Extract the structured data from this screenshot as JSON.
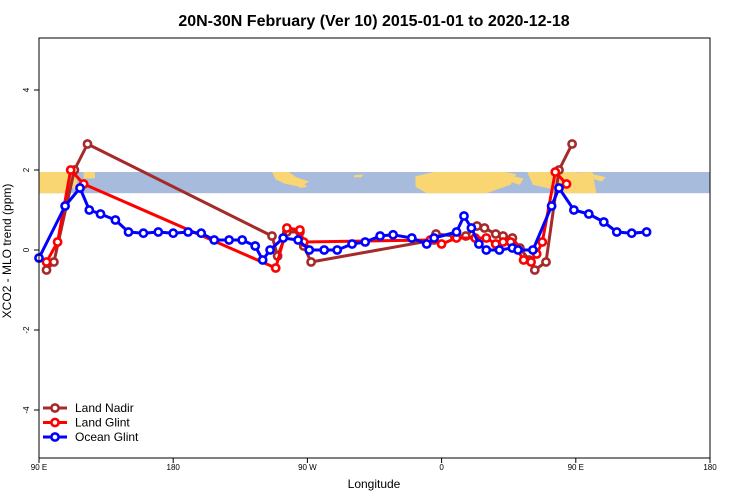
{
  "chart_data": {
    "type": "line",
    "title": "20N-30N February (Ver 10)   2015-01-01 to 2020-12-18",
    "xlabel": "Longitude",
    "ylabel": "XCO2 - MLO trend (ppm)",
    "xlim": [
      -90,
      270
    ],
    "ylim": [
      -5.2,
      5.3
    ],
    "x_ticks": [
      {
        "value": -90,
        "label": "90 E"
      },
      {
        "value": -18,
        "label": "180"
      },
      {
        "value": 54,
        "label": "90 W"
      },
      {
        "value": 126,
        "label": "0"
      },
      {
        "value": 198,
        "label": "90 E"
      },
      {
        "value": 270,
        "label": "180"
      }
    ],
    "y_ticks": [
      {
        "value": -4,
        "label": "-4"
      },
      {
        "value": -2,
        "label": "-2"
      },
      {
        "value": 0,
        "label": "0"
      },
      {
        "value": 2,
        "label": "2"
      },
      {
        "value": 4,
        "label": "4"
      }
    ],
    "map_band": {
      "y_min": 1.42,
      "y_max": 1.95,
      "ocean_color": "#a7bcdc",
      "land_color": "#fad673"
    },
    "legend_position": "bottom-left",
    "series": [
      {
        "name": "Land Nadir",
        "color": "#a52a2a",
        "points": [
          [
            -86,
            -0.5
          ],
          [
            -82,
            -0.3
          ],
          [
            -71,
            2.0
          ],
          [
            -64,
            2.65
          ],
          [
            35,
            0.35
          ],
          [
            38,
            -0.15
          ],
          [
            43,
            0.45
          ],
          [
            50,
            0.45
          ],
          [
            52,
            0.1
          ],
          [
            56,
            -0.3
          ],
          [
            122,
            0.25
          ],
          [
            123,
            0.4
          ],
          [
            133,
            0.35
          ],
          [
            139,
            0.35
          ],
          [
            145,
            0.6
          ],
          [
            149,
            0.55
          ],
          [
            155,
            0.4
          ],
          [
            159,
            0.35
          ],
          [
            164,
            0.3
          ],
          [
            168,
            0.05
          ],
          [
            173,
            -0.25
          ],
          [
            176,
            -0.5
          ],
          [
            182,
            -0.3
          ],
          [
            189,
            2.0
          ],
          [
            196,
            2.65
          ]
        ]
      },
      {
        "name": "Land Glint",
        "color": "#ff0000",
        "points": [
          [
            -86,
            -0.3
          ],
          [
            -80,
            0.2
          ],
          [
            -73,
            2.0
          ],
          [
            -66,
            1.65
          ],
          [
            37,
            -0.45
          ],
          [
            43,
            0.55
          ],
          [
            50,
            0.5
          ],
          [
            52,
            0.2
          ],
          [
            120,
            0.25
          ],
          [
            126,
            0.15
          ],
          [
            134,
            0.3
          ],
          [
            144,
            0.3
          ],
          [
            150,
            0.3
          ],
          [
            155,
            0.15
          ],
          [
            159,
            0.2
          ],
          [
            163,
            0.2
          ],
          [
            166,
            0.05
          ],
          [
            170,
            -0.25
          ],
          [
            174,
            -0.3
          ],
          [
            177,
            -0.1
          ],
          [
            180,
            0.2
          ],
          [
            187,
            1.95
          ],
          [
            193,
            1.65
          ]
        ]
      },
      {
        "name": "Ocean Glint",
        "color": "#0000ff",
        "points": [
          [
            -90,
            -0.2
          ],
          [
            -76,
            1.1
          ],
          [
            -68,
            1.55
          ],
          [
            -63,
            1.0
          ],
          [
            -57,
            0.9
          ],
          [
            -49,
            0.75
          ],
          [
            -42,
            0.45
          ],
          [
            -34,
            0.42
          ],
          [
            -26,
            0.45
          ],
          [
            -18,
            0.42
          ],
          [
            -10,
            0.45
          ],
          [
            -3,
            0.42
          ],
          [
            4,
            0.25
          ],
          [
            12,
            0.25
          ],
          [
            19,
            0.25
          ],
          [
            26,
            0.1
          ],
          [
            30,
            -0.25
          ],
          [
            34,
            0.0
          ],
          [
            41,
            0.3
          ],
          [
            49,
            0.25
          ],
          [
            55,
            0.0
          ],
          [
            63,
            0.0
          ],
          [
            70,
            0.0
          ],
          [
            78,
            0.15
          ],
          [
            85,
            0.2
          ],
          [
            93,
            0.35
          ],
          [
            100,
            0.38
          ],
          [
            110,
            0.3
          ],
          [
            118,
            0.15
          ],
          [
            122,
            0.3
          ],
          [
            134,
            0.45
          ],
          [
            138,
            0.85
          ],
          [
            142,
            0.55
          ],
          [
            146,
            0.15
          ],
          [
            150,
            0.0
          ],
          [
            157,
            0.0
          ],
          [
            164,
            0.05
          ],
          [
            167,
            0.0
          ],
          [
            175,
            0.0
          ],
          [
            185,
            1.1
          ],
          [
            189,
            1.55
          ],
          [
            197,
            1.0
          ],
          [
            205,
            0.9
          ],
          [
            213,
            0.7
          ],
          [
            220,
            0.45
          ],
          [
            228,
            0.42
          ],
          [
            236,
            0.45
          ]
        ]
      }
    ]
  }
}
